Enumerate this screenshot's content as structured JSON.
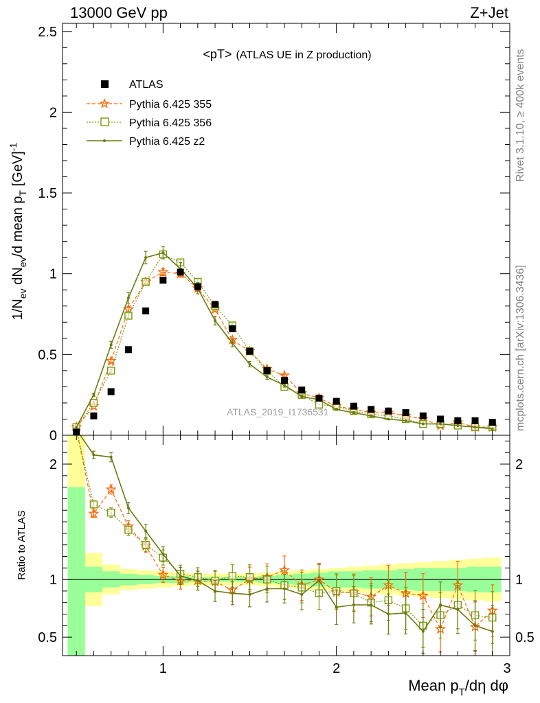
{
  "header": {
    "left": "13000 GeV pp",
    "right": "Z+Jet"
  },
  "side_text": {
    "rivet": "Rivet 3.1.10, ≥ 400k events",
    "mcplots": "mcplots.cern.ch [arXiv:1306.3436]"
  },
  "watermark": "ATLAS_2019_I1736531",
  "plot_title": {
    "main": "<pT>",
    "sub": "(ATLAS UE in Z production)"
  },
  "colors": {
    "atlas": "#000000",
    "p355": "#ff6600",
    "p356": "#7a9a0a",
    "pz2": "#6b7a10",
    "band_yellow": "#ffff99",
    "band_green": "#99ff99"
  },
  "chart_data": [
    {
      "type": "line",
      "title": "<pT> (ATLAS UE in Z production)",
      "ylabel_parts": {
        "a": "1/N",
        "b": "ev",
        "c": " dN",
        "d": "ev",
        "e": "/d mean p",
        "f": "T",
        "g": " [GeV]",
        "h": "-1"
      },
      "xlim": [
        0.42,
        3.0
      ],
      "ylim": [
        0,
        2.55
      ],
      "yticks": [
        0,
        0.5,
        1,
        1.5,
        2,
        2.5
      ],
      "ytick_labels": [
        "0",
        "0.5",
        "1",
        "1.5",
        "2",
        "2.5"
      ],
      "x": [
        0.5,
        0.6,
        0.7,
        0.8,
        0.9,
        1.0,
        1.1,
        1.2,
        1.3,
        1.4,
        1.5,
        1.6,
        1.7,
        1.8,
        1.9,
        2.0,
        2.1,
        2.2,
        2.3,
        2.4,
        2.5,
        2.6,
        2.7,
        2.8,
        2.9
      ],
      "series": [
        {
          "name": "ATLAS",
          "values": [
            0.02,
            0.12,
            0.27,
            0.53,
            0.77,
            0.96,
            1.01,
            0.92,
            0.81,
            0.66,
            0.52,
            0.4,
            0.34,
            0.28,
            0.23,
            0.21,
            0.18,
            0.16,
            0.15,
            0.14,
            0.12,
            0.1,
            0.09,
            0.09,
            0.08
          ]
        },
        {
          "name": "Pythia 6.425 355",
          "values": [
            0.05,
            0.18,
            0.46,
            0.78,
            0.95,
            1.01,
            1.0,
            0.91,
            0.78,
            0.59,
            0.52,
            0.41,
            0.37,
            0.26,
            0.23,
            0.18,
            0.16,
            0.14,
            0.14,
            0.12,
            0.1,
            0.06,
            0.08,
            0.05,
            0.05
          ]
        },
        {
          "name": "Pythia 6.425 356",
          "values": [
            0.05,
            0.2,
            0.4,
            0.74,
            0.95,
            1.12,
            1.07,
            0.95,
            0.8,
            0.68,
            0.52,
            0.4,
            0.3,
            0.25,
            0.19,
            0.18,
            0.15,
            0.13,
            0.12,
            0.1,
            0.07,
            0.07,
            0.06,
            0.05,
            0.05
          ]
        },
        {
          "name": "Pythia 6.425 z2",
          "values": [
            0.05,
            0.25,
            0.56,
            0.85,
            1.1,
            1.13,
            1.03,
            0.91,
            0.71,
            0.57,
            0.44,
            0.36,
            0.31,
            0.24,
            0.22,
            0.16,
            0.14,
            0.12,
            0.1,
            0.09,
            0.07,
            0.07,
            0.06,
            0.05,
            0.04
          ]
        }
      ]
    },
    {
      "type": "line",
      "ylabel": "Ratio to ATLAS",
      "xlabel_parts": {
        "a": "Mean p",
        "b": "T",
        "c": "/dη dφ"
      },
      "xlim": [
        0.42,
        3.0
      ],
      "ylim": [
        0.34,
        2.25
      ],
      "xticks": [
        1,
        2,
        3
      ],
      "xtick_labels": [
        "1",
        "2",
        "3"
      ],
      "yticks": [
        0.5,
        1,
        2
      ],
      "ytick_labels": [
        "0.5",
        "1",
        "2"
      ],
      "x": [
        0.5,
        0.6,
        0.7,
        0.8,
        0.9,
        1.0,
        1.1,
        1.2,
        1.3,
        1.4,
        1.5,
        1.6,
        1.7,
        1.8,
        1.9,
        2.0,
        2.1,
        2.2,
        2.3,
        2.4,
        2.5,
        2.6,
        2.7,
        2.8,
        2.9
      ],
      "band_yellow": {
        "lo": [
          0.3,
          0.77,
          0.87,
          0.91,
          0.92,
          0.93,
          0.94,
          0.95,
          0.95,
          0.95,
          0.95,
          0.94,
          0.93,
          0.92,
          0.91,
          0.9,
          0.89,
          0.88,
          0.87,
          0.86,
          0.85,
          0.84,
          0.83,
          0.82,
          0.81
        ],
        "hi": [
          2.3,
          1.23,
          1.13,
          1.09,
          1.08,
          1.07,
          1.06,
          1.05,
          1.05,
          1.05,
          1.05,
          1.06,
          1.07,
          1.08,
          1.09,
          1.1,
          1.11,
          1.12,
          1.13,
          1.14,
          1.15,
          1.16,
          1.17,
          1.18,
          1.19
        ]
      },
      "band_green": {
        "lo": [
          0.3,
          0.89,
          0.93,
          0.95,
          0.96,
          0.97,
          0.97,
          0.98,
          0.98,
          0.98,
          0.98,
          0.97,
          0.96,
          0.95,
          0.94,
          0.93,
          0.93,
          0.92,
          0.92,
          0.91,
          0.9,
          0.9,
          0.9,
          0.89,
          0.89
        ],
        "hi": [
          1.8,
          1.11,
          1.07,
          1.05,
          1.04,
          1.03,
          1.03,
          1.02,
          1.02,
          1.02,
          1.02,
          1.03,
          1.04,
          1.05,
          1.06,
          1.07,
          1.07,
          1.08,
          1.08,
          1.09,
          1.1,
          1.1,
          1.1,
          1.11,
          1.11
        ]
      },
      "series": [
        {
          "name": "Pythia 6.425 355",
          "values": [
            2.3,
            1.57,
            1.78,
            1.46,
            1.29,
            1.04,
            0.99,
            0.99,
            0.98,
            0.91,
            1.0,
            1.02,
            1.08,
            0.95,
            1.0,
            0.89,
            0.89,
            0.85,
            0.95,
            0.88,
            0.86,
            0.57,
            0.95,
            0.59,
            0.73
          ]
        },
        {
          "name": "Pythia 6.425 356",
          "values": [
            2.3,
            1.65,
            1.58,
            1.43,
            1.3,
            1.19,
            1.05,
            1.02,
            0.99,
            1.03,
            1.02,
            1.0,
            0.95,
            0.93,
            0.88,
            0.9,
            0.88,
            0.8,
            0.82,
            0.75,
            0.6,
            0.69,
            0.78,
            0.69,
            0.67
          ]
        },
        {
          "name": "Pythia 6.425 z2",
          "values": [
            2.3,
            2.08,
            2.06,
            1.62,
            1.42,
            1.22,
            1.03,
            0.99,
            0.9,
            0.88,
            0.87,
            0.92,
            0.92,
            0.87,
            0.99,
            0.76,
            0.78,
            0.78,
            0.7,
            0.71,
            0.55,
            0.78,
            0.74,
            0.6,
            0.55
          ]
        }
      ]
    }
  ]
}
